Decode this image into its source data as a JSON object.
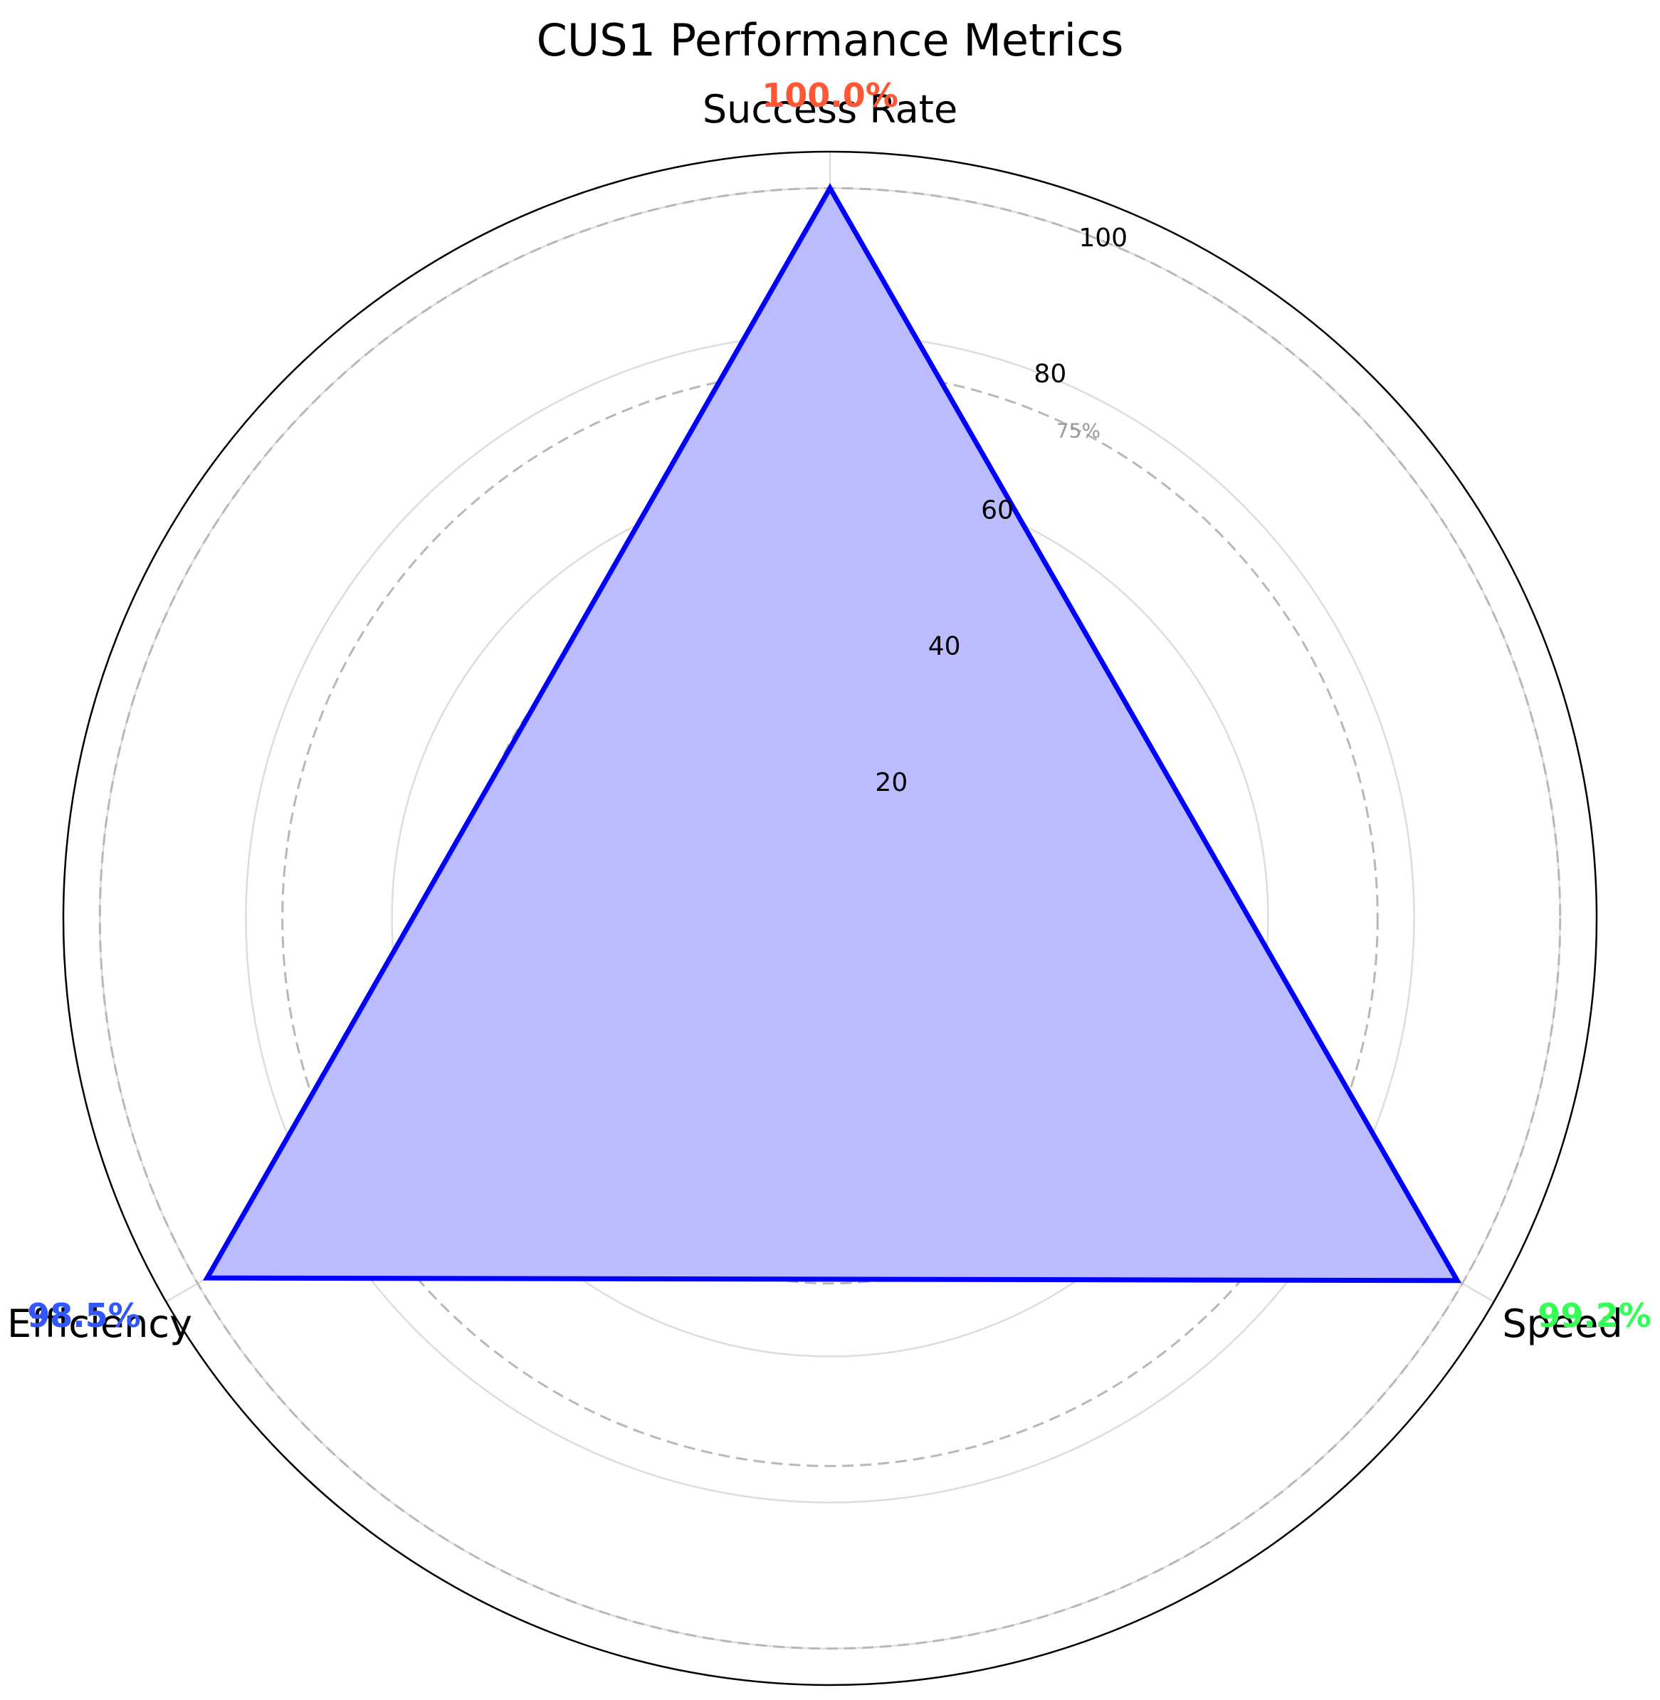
{
  "chart_data": {
    "type": "radar",
    "title": "CUS1 Performance Metrics",
    "categories": [
      "Success Rate",
      "Speed",
      "Efficiency"
    ],
    "series": [
      {
        "values": [
          100.0,
          99.2,
          98.5
        ],
        "color": "#0000ff",
        "fill": "#bbbbff"
      }
    ],
    "value_labels": [
      {
        "text": "100.0%",
        "color": "#ff5733"
      },
      {
        "text": "99.2%",
        "color": "#33ff57"
      },
      {
        "text": "98.5%",
        "color": "#3357ff"
      }
    ],
    "rlim": [
      0,
      105
    ],
    "radial_ticks": [
      20,
      40,
      60,
      80,
      100
    ],
    "reference_rings": [
      {
        "value": 25,
        "label": "25%"
      },
      {
        "value": 50,
        "label": "50%"
      },
      {
        "value": 75,
        "label": "75%"
      },
      {
        "value": 100,
        "label": ""
      }
    ],
    "grid": true
  }
}
